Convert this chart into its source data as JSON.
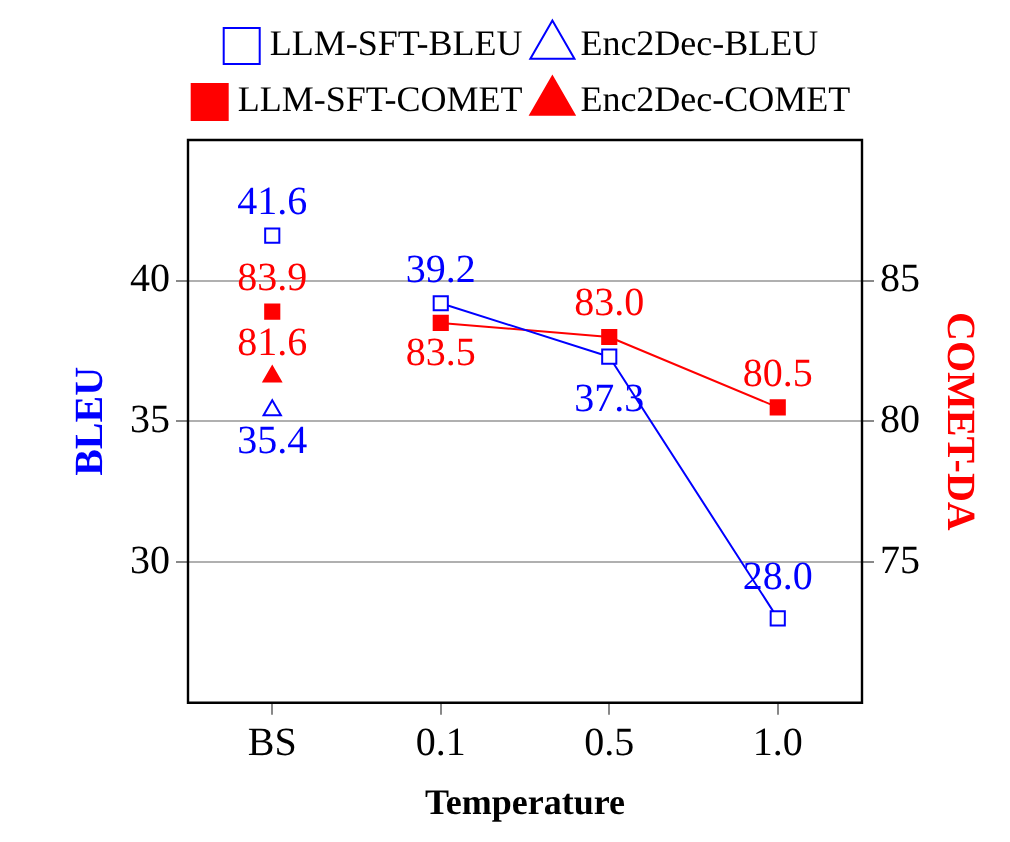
{
  "chart_data": {
    "type": "line",
    "xlabel": "Temperature",
    "ylabel": "BLEU",
    "y2label": "COMET-DA",
    "categories": [
      "BS",
      "0.1",
      "0.5",
      "1.0"
    ],
    "series": [
      {
        "name": "LLM-SFT-BLEU",
        "marker": "square",
        "color": "#0000ff",
        "values": [
          null,
          39.2,
          37.3,
          28.0
        ],
        "value_labels": [
          null,
          "39.2",
          "37.3",
          "28.0"
        ]
      },
      {
        "type": "scatter",
        "marker": "square",
        "color": "#0000ff",
        "values": [
          41.6,
          null,
          null,
          null
        ],
        "value_labels": [
          "41.6",
          null,
          null,
          null
        ]
      },
      {
        "name": "Enc2Dec-BLEU",
        "type": "scatter",
        "marker": "triangle",
        "color": "#0000ff",
        "values": [
          35.4,
          null,
          null,
          null
        ],
        "value_labels": [
          "35.4",
          null,
          null,
          null
        ]
      },
      {
        "name": "LLM-SFT-COMET",
        "marker": "square",
        "axis": "y2",
        "color": "#ff0000",
        "values": [
          null,
          83.5,
          83.0,
          80.5
        ],
        "value_labels": [
          null,
          "83.5",
          "83.0",
          "80.5"
        ]
      },
      {
        "type": "scatter",
        "marker": "square",
        "axis": "y2",
        "color": "#ff0000",
        "values": [
          83.9,
          null,
          null,
          null
        ],
        "value_labels": [
          "83.9",
          null,
          null,
          null
        ]
      },
      {
        "name": "Enc2Dec-COMET",
        "type": "scatter",
        "marker": "triangle",
        "axis": "y2",
        "color": "#ff0000",
        "values": [
          81.6,
          null,
          null,
          null
        ],
        "value_labels": [
          "81.6",
          null,
          null,
          null
        ]
      }
    ],
    "ylim": [
      25,
      45
    ],
    "yticks": [
      30,
      35,
      40
    ],
    "y2lim": [
      70,
      90
    ],
    "y2ticks": [
      75,
      80,
      85
    ],
    "grid": "y",
    "legend": "top"
  }
}
